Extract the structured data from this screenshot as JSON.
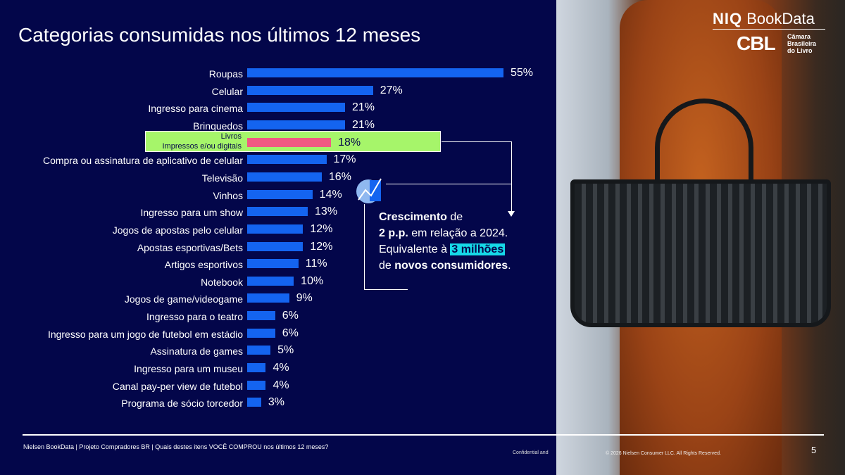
{
  "header": {
    "title": "Categorias consumidas nos últimos 12 meses"
  },
  "logos": {
    "niq_bold": "NIQ",
    "niq_rest": " BookData",
    "cbl": "CBL",
    "cbl_text": [
      "Câmara",
      "Brasileira",
      "do Livro"
    ]
  },
  "chart_data": {
    "type": "bar",
    "orientation": "horizontal",
    "title": "Categorias consumidas nos últimos 12 meses",
    "unit": "%",
    "xlim": [
      0,
      55
    ],
    "categories": [
      "Roupas",
      "Celular",
      "Ingresso para cinema",
      "Brinquedos",
      "Livros",
      "Compra ou assinatura de aplicativo de celular",
      "Televisão",
      "Vinhos",
      "Ingresso para um show",
      "Jogos de apostas pelo celular",
      "Apostas esportivas/Bets",
      "Artigos esportivos",
      "Notebook",
      "Jogos de game/videogame",
      "Ingresso para o teatro",
      "Ingresso para um jogo de futebol em estádio",
      "Assinatura de games",
      "Ingresso para um museu",
      "Canal pay-per view de futebol",
      "Programa de sócio torcedor"
    ],
    "values": [
      55,
      27,
      21,
      21,
      18,
      17,
      16,
      14,
      13,
      12,
      12,
      11,
      10,
      9,
      6,
      6,
      5,
      4,
      4,
      3
    ],
    "labels": [
      "55%",
      "27%",
      "21%",
      "21%",
      "18%",
      "17%",
      "16%",
      "14%",
      "13%",
      "12%",
      "12%",
      "11%",
      "10%",
      "9%",
      "6%",
      "6%",
      "5%",
      "4%",
      "4%",
      "3%"
    ],
    "highlight": {
      "index": 4,
      "line1": "Livros",
      "line2": "Impressos e/ou digitais",
      "bar_color": "#f05a82",
      "bg_color": "#a6f56a"
    },
    "bar_color": "#1464f0"
  },
  "note": {
    "b1": "Crescimento",
    "t1": " de",
    "b2": "2 p.p.",
    "t2": " em relação a 2024.",
    "t3": "Equivalente à ",
    "hl": "3 milhões",
    "t4": "de ",
    "b3": "novos consumidores",
    "t5": "."
  },
  "footer": {
    "source_bold": "Nielsen BookData | Projeto Compradores BR",
    "question": " | Quais destes itens VOCÊ COMPROU nos últimos 12 meses?",
    "confidential": "Confidential and",
    "copyright": "© 2026 Nielsen Consumer LLC. All Rights Reserved.",
    "page": "5"
  }
}
